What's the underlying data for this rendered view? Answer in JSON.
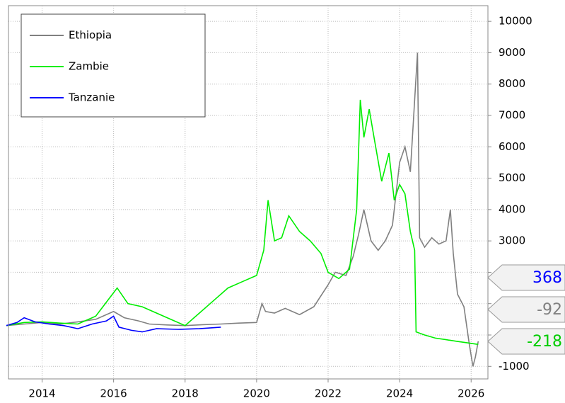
{
  "chart_data": {
    "type": "line",
    "series": [
      {
        "name": "Ethiopia",
        "color": "#808080",
        "x": [
          2013.0,
          2013.5,
          2014.0,
          2014.5,
          2015.0,
          2015.5,
          2016.0,
          2016.3,
          2016.7,
          2017.0,
          2017.5,
          2018.0,
          2018.5,
          2019.0,
          2019.5,
          2020.0,
          2020.15,
          2020.25,
          2020.5,
          2020.8,
          2021.2,
          2021.6,
          2022.0,
          2022.2,
          2022.5,
          2022.7,
          2022.85,
          2023.0,
          2023.2,
          2023.4,
          2023.6,
          2023.8,
          2024.0,
          2024.15,
          2024.3,
          2024.42,
          2024.5,
          2024.56,
          2024.7,
          2024.9,
          2025.1,
          2025.3,
          2025.42,
          2025.5,
          2025.62,
          2025.8,
          2025.95,
          2026.05,
          2026.12,
          2026.2
        ],
        "values": [
          300,
          350,
          400,
          350,
          420,
          500,
          750,
          550,
          450,
          350,
          320,
          300,
          330,
          350,
          380,
          400,
          1000,
          750,
          700,
          850,
          650,
          900,
          1600,
          2000,
          1900,
          2500,
          3200,
          4000,
          3000,
          2700,
          3000,
          3500,
          5500,
          6000,
          5200,
          7500,
          9000,
          3100,
          2800,
          3100,
          2900,
          3000,
          4000,
          2600,
          1300,
          900,
          -300,
          -1000,
          -700,
          -200
        ]
      },
      {
        "name": "Zambie",
        "color": "#00ee00",
        "x": [
          2013.0,
          2013.5,
          2014.0,
          2014.5,
          2015.0,
          2015.5,
          2015.9,
          2016.1,
          2016.4,
          2016.8,
          2017.2,
          2017.6,
          2018.0,
          2018.4,
          2018.8,
          2019.2,
          2019.6,
          2020.0,
          2020.2,
          2020.32,
          2020.5,
          2020.7,
          2020.9,
          2021.2,
          2021.5,
          2021.8,
          2022.0,
          2022.3,
          2022.6,
          2022.8,
          2022.9,
          2023.0,
          2023.15,
          2023.3,
          2023.5,
          2023.7,
          2023.85,
          2024.0,
          2024.15,
          2024.3,
          2024.42,
          2024.46,
          2024.7,
          2025.0,
          2025.3,
          2025.6,
          2025.9,
          2026.2
        ],
        "values": [
          300,
          400,
          420,
          380,
          350,
          600,
          1200,
          1500,
          1000,
          900,
          700,
          500,
          300,
          700,
          1100,
          1500,
          1700,
          1900,
          2700,
          4300,
          3000,
          3100,
          3800,
          3300,
          3000,
          2600,
          2000,
          1800,
          2100,
          4000,
          7500,
          6300,
          7200,
          6200,
          4900,
          5800,
          4300,
          4800,
          4500,
          3300,
          2700,
          100,
          0,
          -100,
          -150,
          -200,
          -250,
          -300
        ]
      },
      {
        "name": "Tanzanie",
        "color": "#0000ff",
        "x": [
          2013.0,
          2013.3,
          2013.5,
          2013.8,
          2014.2,
          2014.6,
          2015.0,
          2015.4,
          2015.8,
          2016.0,
          2016.15,
          2016.5,
          2016.8,
          2017.2,
          2017.8,
          2018.4,
          2019.0
        ],
        "values": [
          300,
          400,
          550,
          420,
          350,
          300,
          200,
          350,
          450,
          600,
          250,
          150,
          100,
          200,
          180,
          200,
          250
        ]
      }
    ],
    "legend": "upper left",
    "xlim": [
      2013.06,
      2026.47
    ],
    "xticks": [
      2014,
      2016,
      2018,
      2020,
      2022,
      2024,
      2026
    ],
    "ylim": [
      -1400,
      10500
    ],
    "yticks": [
      -1000,
      0,
      1000,
      2000,
      3000,
      4000,
      5000,
      6000,
      7000,
      8000,
      9000,
      10000
    ],
    "grid": true,
    "callouts": [
      {
        "text": "368",
        "color": "#0000ff"
      },
      {
        "text": "-92",
        "color": "#808080"
      },
      {
        "text": "-218",
        "color": "#00cc00"
      }
    ]
  }
}
